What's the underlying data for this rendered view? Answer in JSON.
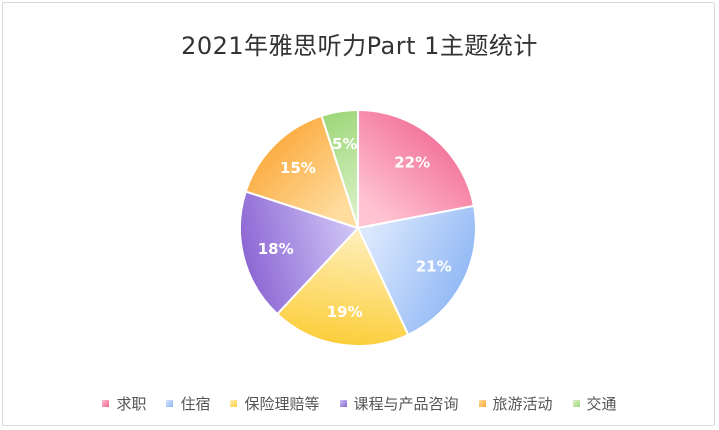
{
  "chart_data": {
    "type": "pie",
    "title": "2021年雅思听力Part 1主题统计",
    "legend_position": "bottom",
    "categories": [
      "求职",
      "住宿",
      "保险理赔等",
      "课程与产品咨询",
      "旅游活动",
      "交通"
    ],
    "values": [
      22,
      21,
      19,
      18,
      15,
      5
    ],
    "labels": [
      "22%",
      "21%",
      "19%",
      "18%",
      "15%",
      "5%"
    ],
    "colors": [
      "#f0648f",
      "#8bb4f4",
      "#fccd38",
      "#8a63d2",
      "#fba534",
      "#9ed77a"
    ],
    "gradient_light": [
      "#ffc3d2",
      "#dbe8fd",
      "#fff0be",
      "#cfc6f6",
      "#ffdd9e",
      "#dcf2c9"
    ]
  }
}
